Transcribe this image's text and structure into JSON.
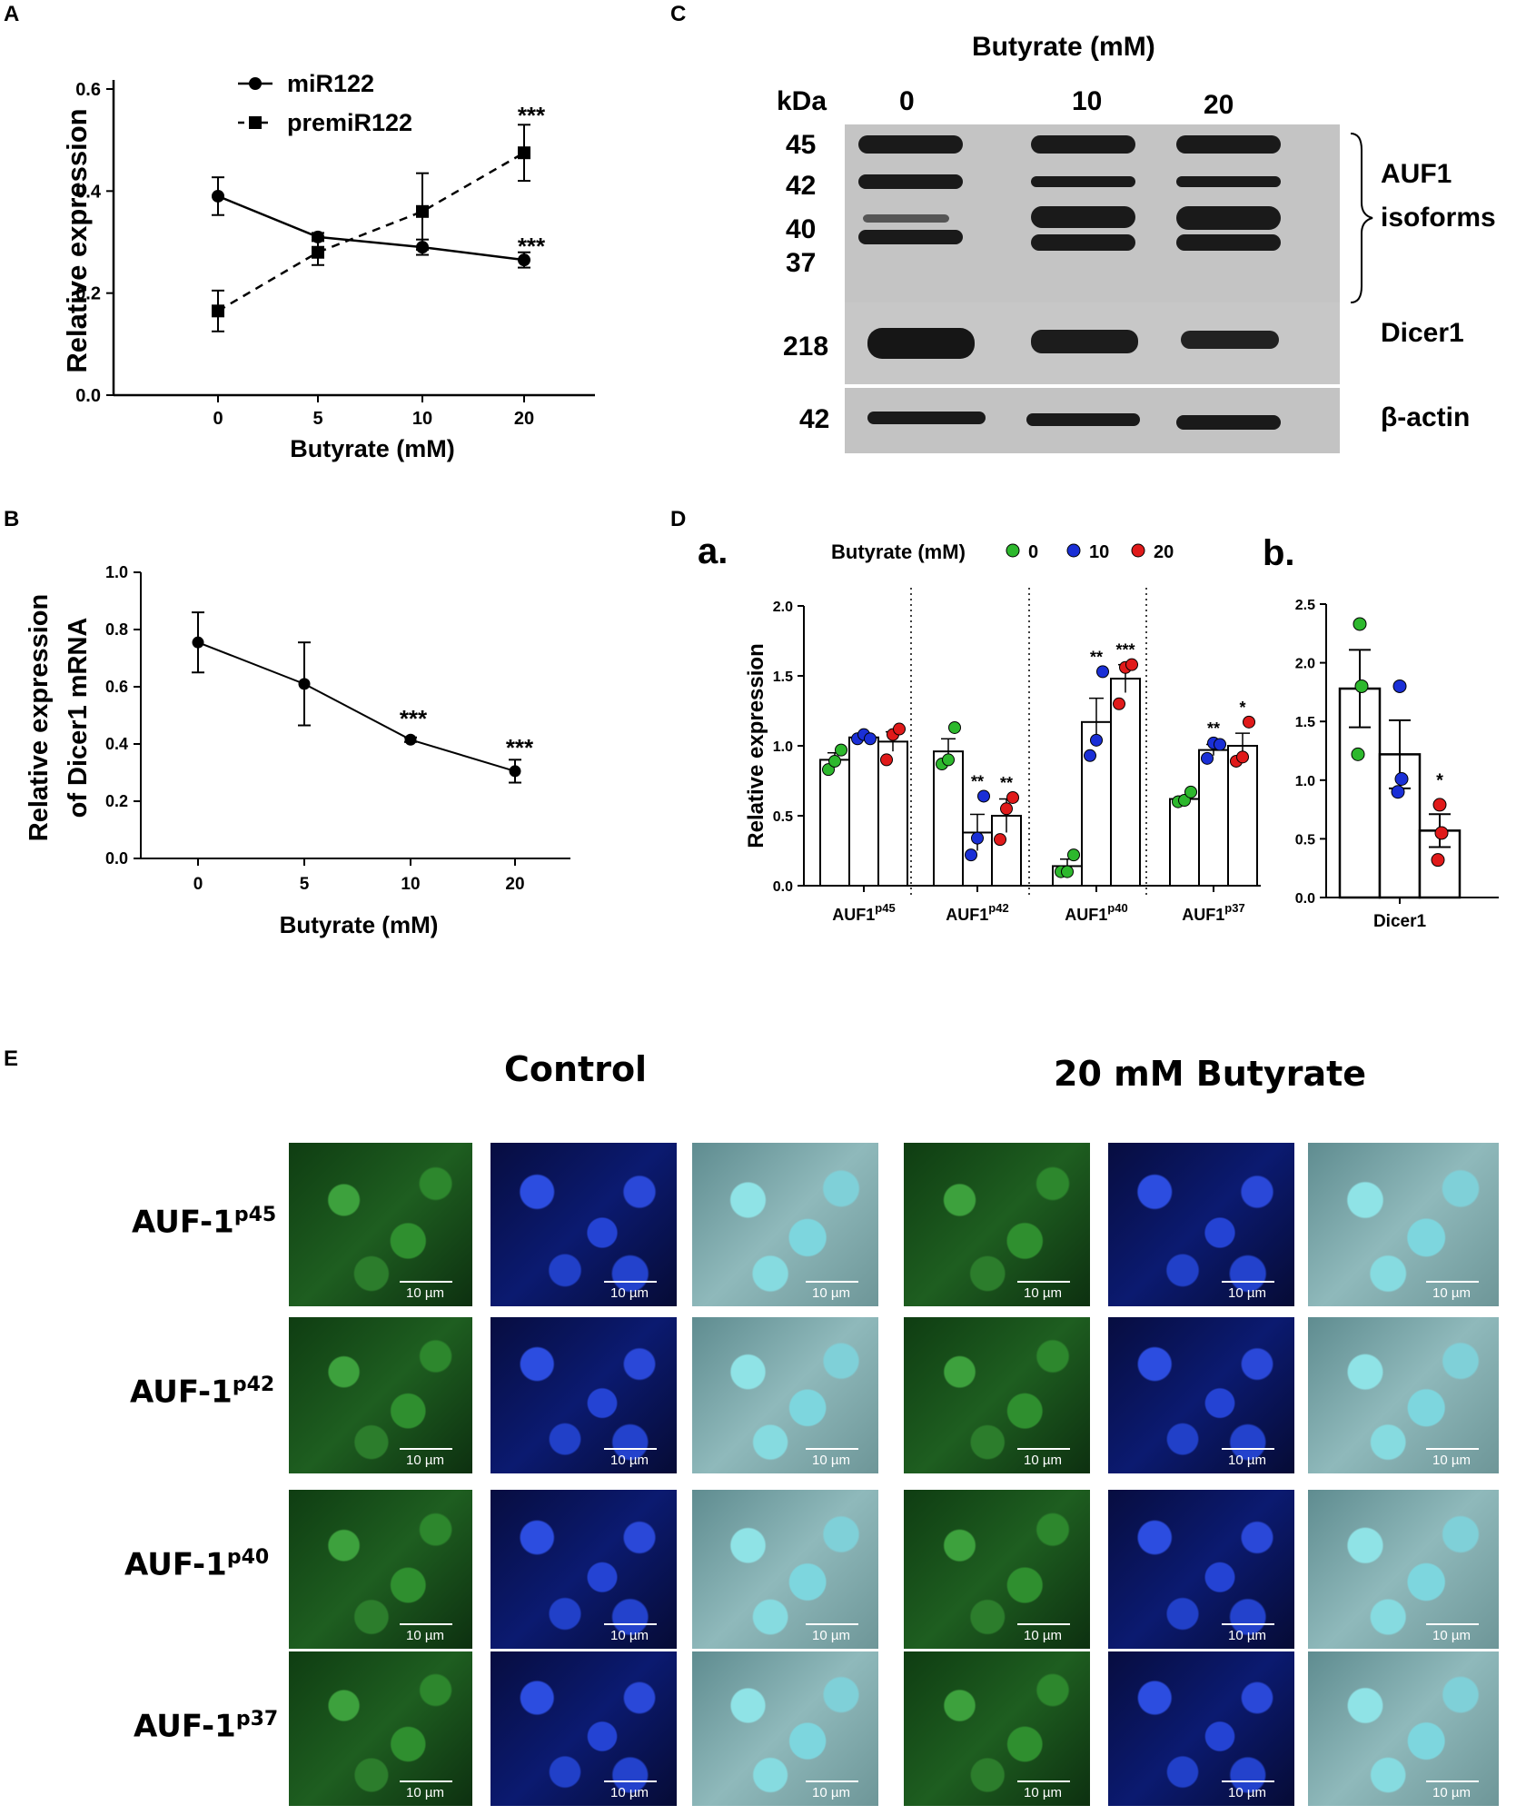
{
  "panel_letters": {
    "A": "A",
    "B": "B",
    "C": "C",
    "D": "D",
    "E": "E",
    "Da": "a.",
    "Db": "b."
  },
  "chart_data": [
    {
      "id": "A",
      "type": "line",
      "x": [
        0,
        5,
        10,
        20
      ],
      "categories": [
        "0",
        "5",
        "10",
        "20"
      ],
      "xlabel": "Butyrate (mM)",
      "ylabel": "Relative  expression",
      "ylim": [
        0,
        0.6
      ],
      "yticks": [
        "0.0",
        "0.2",
        "0.4",
        "0.6"
      ],
      "series": [
        {
          "name": "miR122",
          "values": [
            0.39,
            0.31,
            0.29,
            0.265
          ],
          "err": [
            0.037,
            0.008,
            0.015,
            0.015
          ],
          "style": "solid",
          "marker": "circle"
        },
        {
          "name": "premiR122",
          "values": [
            0.165,
            0.28,
            0.36,
            0.475
          ],
          "err": [
            0.04,
            0.025,
            0.075,
            0.055
          ],
          "style": "dashed",
          "marker": "square"
        }
      ],
      "annotations": [
        "***",
        "***"
      ]
    },
    {
      "id": "B",
      "type": "line",
      "x": [
        0,
        5,
        10,
        20
      ],
      "categories": [
        "0",
        "5",
        "10",
        "20"
      ],
      "xlabel": "Butyrate (mM)",
      "ylabel": "Relative  expression",
      "ylabel2": "of Dicer1 mRNA",
      "ylim": [
        0,
        1.0
      ],
      "yticks": [
        "0.0",
        "0.2",
        "0.4",
        "0.6",
        "0.8",
        "1.0"
      ],
      "series": [
        {
          "values": [
            0.755,
            0.61,
            0.415,
            0.305
          ],
          "err": [
            0.105,
            0.145,
            0.008,
            0.04
          ]
        }
      ],
      "annotations": [
        "***",
        "***"
      ]
    },
    {
      "id": "Da",
      "type": "bar",
      "legend_title": "Butyrate (mM)",
      "legend": [
        "0",
        "10",
        "20"
      ],
      "categories": [
        "AUF1",
        "AUF1",
        "AUF1",
        "AUF1"
      ],
      "category_sups": [
        "p45",
        "p42",
        "p40",
        "p37"
      ],
      "ylabel": "Relative expression",
      "ylim": [
        0,
        2.0
      ],
      "yticks": [
        "0.0",
        "0.5",
        "1.0",
        "1.5",
        "2.0"
      ],
      "series": [
        {
          "name": "0",
          "values": [
            0.9,
            0.96,
            0.14,
            0.62
          ],
          "err": [
            0.05,
            0.09,
            0.05,
            0.02
          ]
        },
        {
          "name": "10",
          "values": [
            1.06,
            0.38,
            1.17,
            0.97
          ],
          "err": [
            0.02,
            0.13,
            0.17,
            0.04
          ]
        },
        {
          "name": "20",
          "values": [
            1.03,
            0.5,
            1.48,
            1.0
          ],
          "err": [
            0.07,
            0.12,
            0.1,
            0.09
          ]
        }
      ],
      "points": [
        [
          [
            0.83,
            0.89,
            0.97
          ],
          [
            0.87,
            0.9,
            1.13
          ],
          [
            0.1,
            0.1,
            0.22
          ],
          [
            0.6,
            0.61,
            0.67
          ]
        ],
        [
          [
            1.05,
            1.08,
            1.05
          ],
          [
            0.22,
            0.34,
            0.64
          ],
          [
            0.93,
            1.04,
            1.53
          ],
          [
            0.91,
            1.02,
            1.01
          ]
        ],
        [
          [
            0.9,
            1.08,
            1.12
          ],
          [
            0.33,
            0.55,
            0.63
          ],
          [
            1.3,
            1.56,
            1.58
          ],
          [
            0.89,
            0.92,
            1.17
          ]
        ]
      ],
      "sig": [
        [
          "",
          "",
          ""
        ],
        [
          "",
          "**",
          "**"
        ],
        [
          "",
          "**",
          "***"
        ],
        [
          "",
          "**",
          "*"
        ]
      ]
    },
    {
      "id": "Db",
      "type": "bar",
      "categories": [
        "Dicer1"
      ],
      "ylim": [
        0,
        2.5
      ],
      "yticks": [
        "0.0",
        "0.5",
        "1.0",
        "1.5",
        "2.0",
        "2.5"
      ],
      "series": [
        {
          "name": "0",
          "values": [
            1.78
          ],
          "err": [
            0.33
          ]
        },
        {
          "name": "10",
          "values": [
            1.22
          ],
          "err": [
            0.29
          ]
        },
        {
          "name": "20",
          "values": [
            0.57
          ],
          "err": [
            0.14
          ]
        }
      ],
      "points": [
        [
          1.22,
          1.8,
          2.33
        ],
        [
          0.9,
          1.01,
          1.8
        ],
        [
          0.32,
          0.55,
          0.79
        ]
      ],
      "sig": [
        "",
        "",
        "*"
      ]
    }
  ],
  "blot": {
    "title": "Butyrate (mM)",
    "kda": "kDa",
    "lanes": [
      "0",
      "10",
      "20"
    ],
    "upper_markers": [
      "45",
      "42",
      "40",
      "37"
    ],
    "dicer_marker": "218",
    "actin_marker": "42",
    "auf1_label_1": "AUF1",
    "auf1_label_2": "isoforms",
    "dicer_label": "Dicer1",
    "actin_label": "β-actin"
  },
  "panelE": {
    "control_title": "Control",
    "treated_title": "20 mM Butyrate",
    "rows": [
      {
        "label": "AUF-1",
        "sup": "p45"
      },
      {
        "label": "AUF-1",
        "sup": "p42"
      },
      {
        "label": "AUF-1",
        "sup": "p40"
      },
      {
        "label": "AUF-1",
        "sup": "p37"
      }
    ],
    "scale": "10 µm"
  },
  "colors": {
    "green": "#2db82d",
    "blue": "#1a2fd6",
    "red": "#e01a1a",
    "black": "#000000"
  }
}
